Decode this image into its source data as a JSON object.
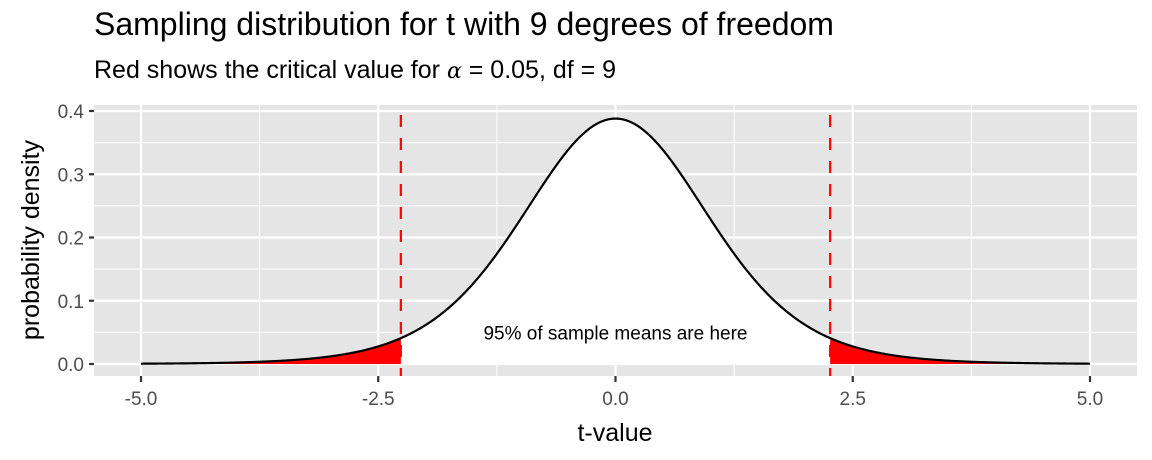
{
  "chart_data": {
    "type": "area",
    "title": "Sampling distribution for t with 9 degrees of freedom",
    "subtitle_prefix": "Red shows the critical value for ",
    "subtitle_alpha_symbol": "α",
    "subtitle_suffix": " = 0.05, df = 9",
    "xlabel": "t-value",
    "ylabel": "probability density",
    "df": 9,
    "alpha": 0.05,
    "critical_value": 2.262,
    "xlim": [
      -5,
      5
    ],
    "ylim": [
      0,
      0.4
    ],
    "x_ticks": [
      -5.0,
      -2.5,
      0.0,
      2.5,
      5.0
    ],
    "x_tick_labels": [
      "-5.0",
      "-2.5",
      "0.0",
      "2.5",
      "5.0"
    ],
    "y_ticks": [
      0.0,
      0.1,
      0.2,
      0.3,
      0.4
    ],
    "y_tick_labels": [
      "0.0",
      "0.1",
      "0.2",
      "0.3",
      "0.4"
    ],
    "grid": true,
    "x": [
      -5.0,
      -4.5,
      -4.0,
      -3.5,
      -3.0,
      -2.5,
      -2.262,
      -2.0,
      -1.5,
      -1.0,
      -0.5,
      0.0,
      0.5,
      1.0,
      1.5,
      2.0,
      2.262,
      2.5,
      3.0,
      3.5,
      4.0,
      4.5,
      5.0
    ],
    "y": [
      0.0002,
      0.0005,
      0.0013,
      0.0034,
      0.009,
      0.0243,
      0.0379,
      0.0611,
      0.1274,
      0.2304,
      0.342,
      0.388,
      0.342,
      0.2304,
      0.1274,
      0.0611,
      0.0379,
      0.0243,
      0.009,
      0.0034,
      0.0013,
      0.0005,
      0.0002
    ],
    "annotation": {
      "text": "95% of sample means are here",
      "x": 0.0,
      "y": 0.05
    },
    "shaded_tails": {
      "color": "#ff0000",
      "left": [
        -5,
        -2.262
      ],
      "right": [
        2.262,
        5
      ]
    },
    "vlines": [
      {
        "x": -2.262,
        "color": "#ff0000",
        "style": "dashed"
      },
      {
        "x": 2.262,
        "color": "#ff0000",
        "style": "dashed"
      }
    ],
    "colors": {
      "panel_bg": "#e5e5e5",
      "grid": "#ffffff",
      "curve": "#000000",
      "tails": "#ff0000",
      "center_fill": "#ffffff",
      "critical_line": "#ff0000"
    }
  }
}
